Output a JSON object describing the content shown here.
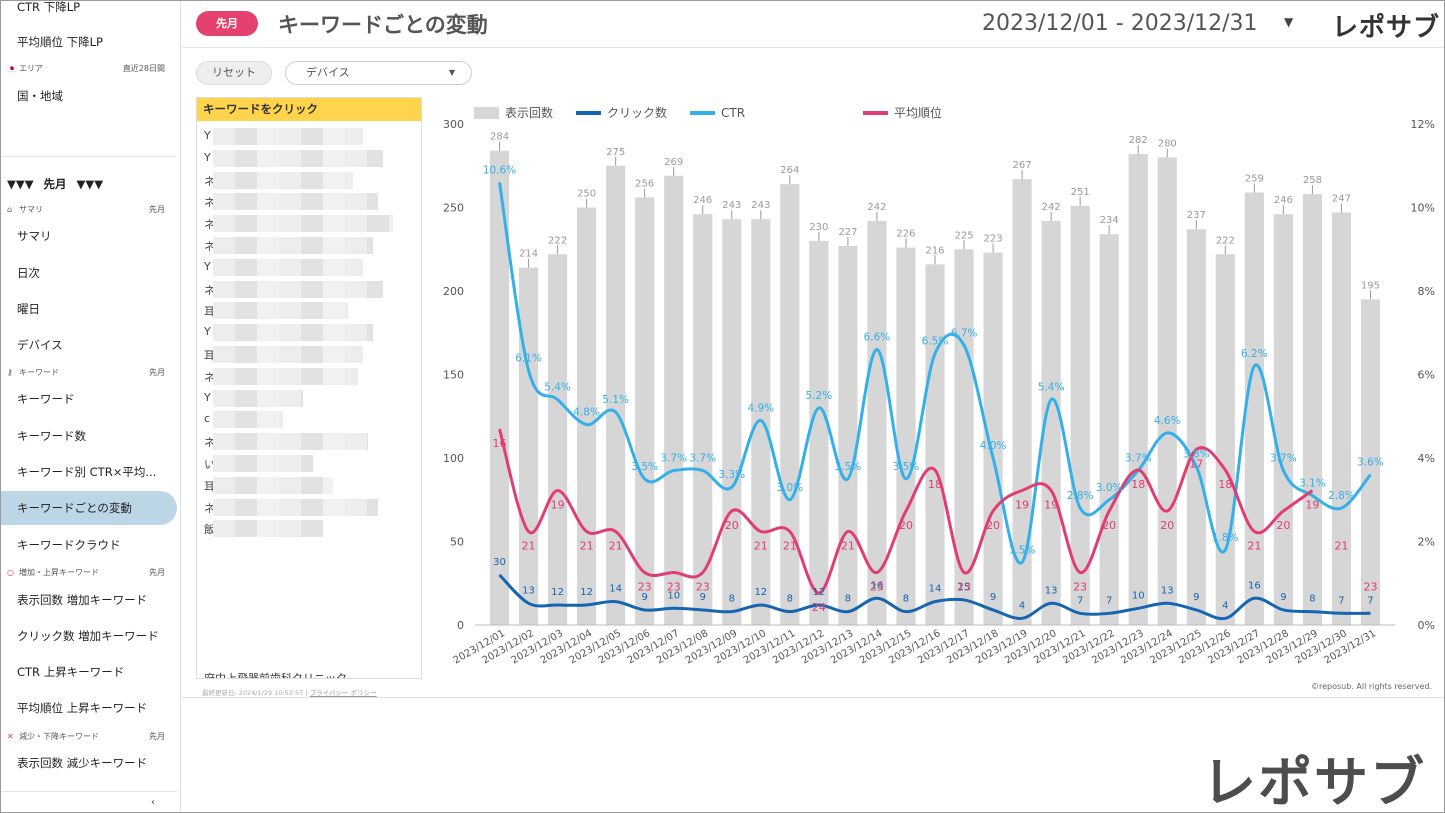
{
  "app": {
    "page_title": "キーワードごとの変動",
    "period_badge": "先月",
    "date_range": "2023/12/01 - 2023/12/31",
    "logo": "レポサブ",
    "copyright": "©reposub. All rights reserved.",
    "footer_updated": "最終更新日: 2024/1/29 10:52:57",
    "footer_privacy": "プライバシー ポリシー"
  },
  "sidebar": {
    "top_items": [
      "CTR 下降LP",
      "平均順位 下降LP"
    ],
    "area_section": {
      "label": "エリア",
      "period": "直近28日間"
    },
    "area_item": "国・地域",
    "month_selector": "▼▼▼ 先月 ▼▼▼",
    "summary_section": {
      "label": "サマリ",
      "period": "先月"
    },
    "summary_items": [
      "サマリ",
      "日次",
      "曜日",
      "デバイス"
    ],
    "keyword_section": {
      "label": "キーワード",
      "period": "先月"
    },
    "keyword_items": [
      "キーワード",
      "キーワード数",
      "キーワード別 CTR×平均...",
      "キーワードごとの変動",
      "キーワードクラウド"
    ],
    "increase_section": {
      "label": "増加・上昇キーワード",
      "period": "先月"
    },
    "increase_items": [
      "表示回数 増加キーワード",
      "クリック数 増加キーワード",
      "CTR 上昇キーワード",
      "平均順位 上昇キーワード"
    ],
    "decrease_section": {
      "label": "減少・下降キーワード",
      "period": "先月"
    },
    "decrease_items": [
      "表示回数 減少キーワード"
    ],
    "collapse_glyph": "‹"
  },
  "controls": {
    "reset_label": "リセット",
    "device_select_value": "デバイス"
  },
  "keyword_panel": {
    "header": "キーワードをクリック",
    "row_initials": [
      "Y",
      "Y",
      "ネ",
      "ネ",
      "ネ",
      "ネ",
      "Y",
      "ネ",
      "耳",
      "Y",
      "耳",
      "ネ",
      "Y",
      "c",
      "ネ",
      "い",
      "耳",
      "ネ",
      "飯"
    ],
    "last_row": "府中上飛器前歯科クリニック"
  },
  "colors": {
    "impressions": "#d6d6d6",
    "clicks": "#1565b0",
    "ctr": "#34b0e8",
    "position": "#e23d73",
    "badge": "#e4416f",
    "keyword_header": "#fdd44c",
    "active_item": "#bcd6e6"
  },
  "chart_data": {
    "type": "bar",
    "categories": [
      "2023/12/01",
      "2023/12/02",
      "2023/12/03",
      "2023/12/04",
      "2023/12/05",
      "2023/12/06",
      "2023/12/07",
      "2023/12/08",
      "2023/12/09",
      "2023/12/10",
      "2023/12/11",
      "2023/12/12",
      "2023/12/13",
      "2023/12/14",
      "2023/12/15",
      "2023/12/16",
      "2023/12/17",
      "2023/12/18",
      "2023/12/19",
      "2023/12/20",
      "2023/12/21",
      "2023/12/22",
      "2023/12/23",
      "2023/12/24",
      "2023/12/25",
      "2023/12/26",
      "2023/12/27",
      "2023/12/28",
      "2023/12/29",
      "2023/12/30",
      "2023/12/31"
    ],
    "legend": [
      "表示回数",
      "クリック数",
      "CTR",
      "平均順位"
    ],
    "legend_position": "top-left",
    "y_left": {
      "ticks": [
        "0",
        "50",
        "100",
        "150",
        "200",
        "250",
        "300"
      ],
      "lim": [
        0,
        300
      ]
    },
    "y_right": {
      "ticks": [
        "0%",
        "2%",
        "4%",
        "6%",
        "8%",
        "10%",
        "12%"
      ],
      "lim": [
        0,
        12
      ]
    },
    "series": [
      {
        "name": "表示回数",
        "type": "bar",
        "axis": "left",
        "values": [
          284,
          214,
          222,
          250,
          275,
          256,
          269,
          246,
          243,
          243,
          264,
          230,
          227,
          242,
          226,
          216,
          225,
          223,
          267,
          242,
          251,
          234,
          282,
          280,
          237,
          222,
          259,
          246,
          258,
          247,
          195
        ]
      },
      {
        "name": "クリック数",
        "type": "line",
        "axis": "left",
        "values": [
          30,
          13,
          12,
          12,
          14,
          9,
          10,
          9,
          8,
          12,
          8,
          12,
          8,
          16,
          8,
          14,
          15,
          9,
          4,
          13,
          7,
          7,
          10,
          13,
          9,
          4,
          16,
          9,
          8,
          7,
          7
        ]
      },
      {
        "name": "CTR",
        "type": "line",
        "axis": "right",
        "unit": "%",
        "values": [
          10.6,
          6.1,
          5.4,
          4.8,
          5.1,
          3.5,
          3.7,
          3.7,
          3.3,
          4.9,
          3.0,
          5.2,
          3.5,
          6.6,
          3.5,
          6.5,
          6.7,
          4.0,
          1.5,
          5.4,
          2.8,
          3.0,
          3.7,
          4.6,
          3.8,
          1.8,
          6.2,
          3.7,
          3.1,
          2.8,
          3.6
        ],
        "labels": [
          "10.6%",
          "6.1%",
          "5.4%",
          "4.8%",
          "5.1%",
          "3.5%",
          "3.7%",
          "3.7%",
          "3.3%",
          "4.9%",
          "3.0%",
          "5.2%",
          "3.5%",
          "6.6%",
          "3.5%",
          "6.5%",
          "6.7%",
          "4.0%",
          "1.5%",
          "5.4%",
          "2.8%",
          "3.0%",
          "3.7%",
          "4.6%",
          "3.8%",
          "1.8%",
          "6.2%",
          "3.7%",
          "3.1%",
          "2.8%",
          "3.6%"
        ]
      },
      {
        "name": "平均順位",
        "type": "line",
        "axis": "inverted-context",
        "values": [
          16,
          21,
          19,
          21,
          21,
          23,
          23,
          23,
          20,
          21,
          21,
          24,
          21,
          23,
          20,
          18,
          23,
          20,
          19,
          19,
          23,
          20,
          18,
          20,
          17,
          18,
          21,
          20,
          19,
          21,
          23
        ],
        "labels": [
          "16",
          "21",
          "19",
          "21",
          "21",
          "23",
          "23",
          "23",
          "20",
          "21",
          "21",
          "24",
          "21",
          "23",
          "20",
          "18",
          "23",
          "20",
          "19",
          "19",
          "23",
          "20",
          "18",
          "20",
          "17",
          "18",
          "21",
          "20",
          "19",
          "21",
          "23"
        ]
      }
    ]
  }
}
